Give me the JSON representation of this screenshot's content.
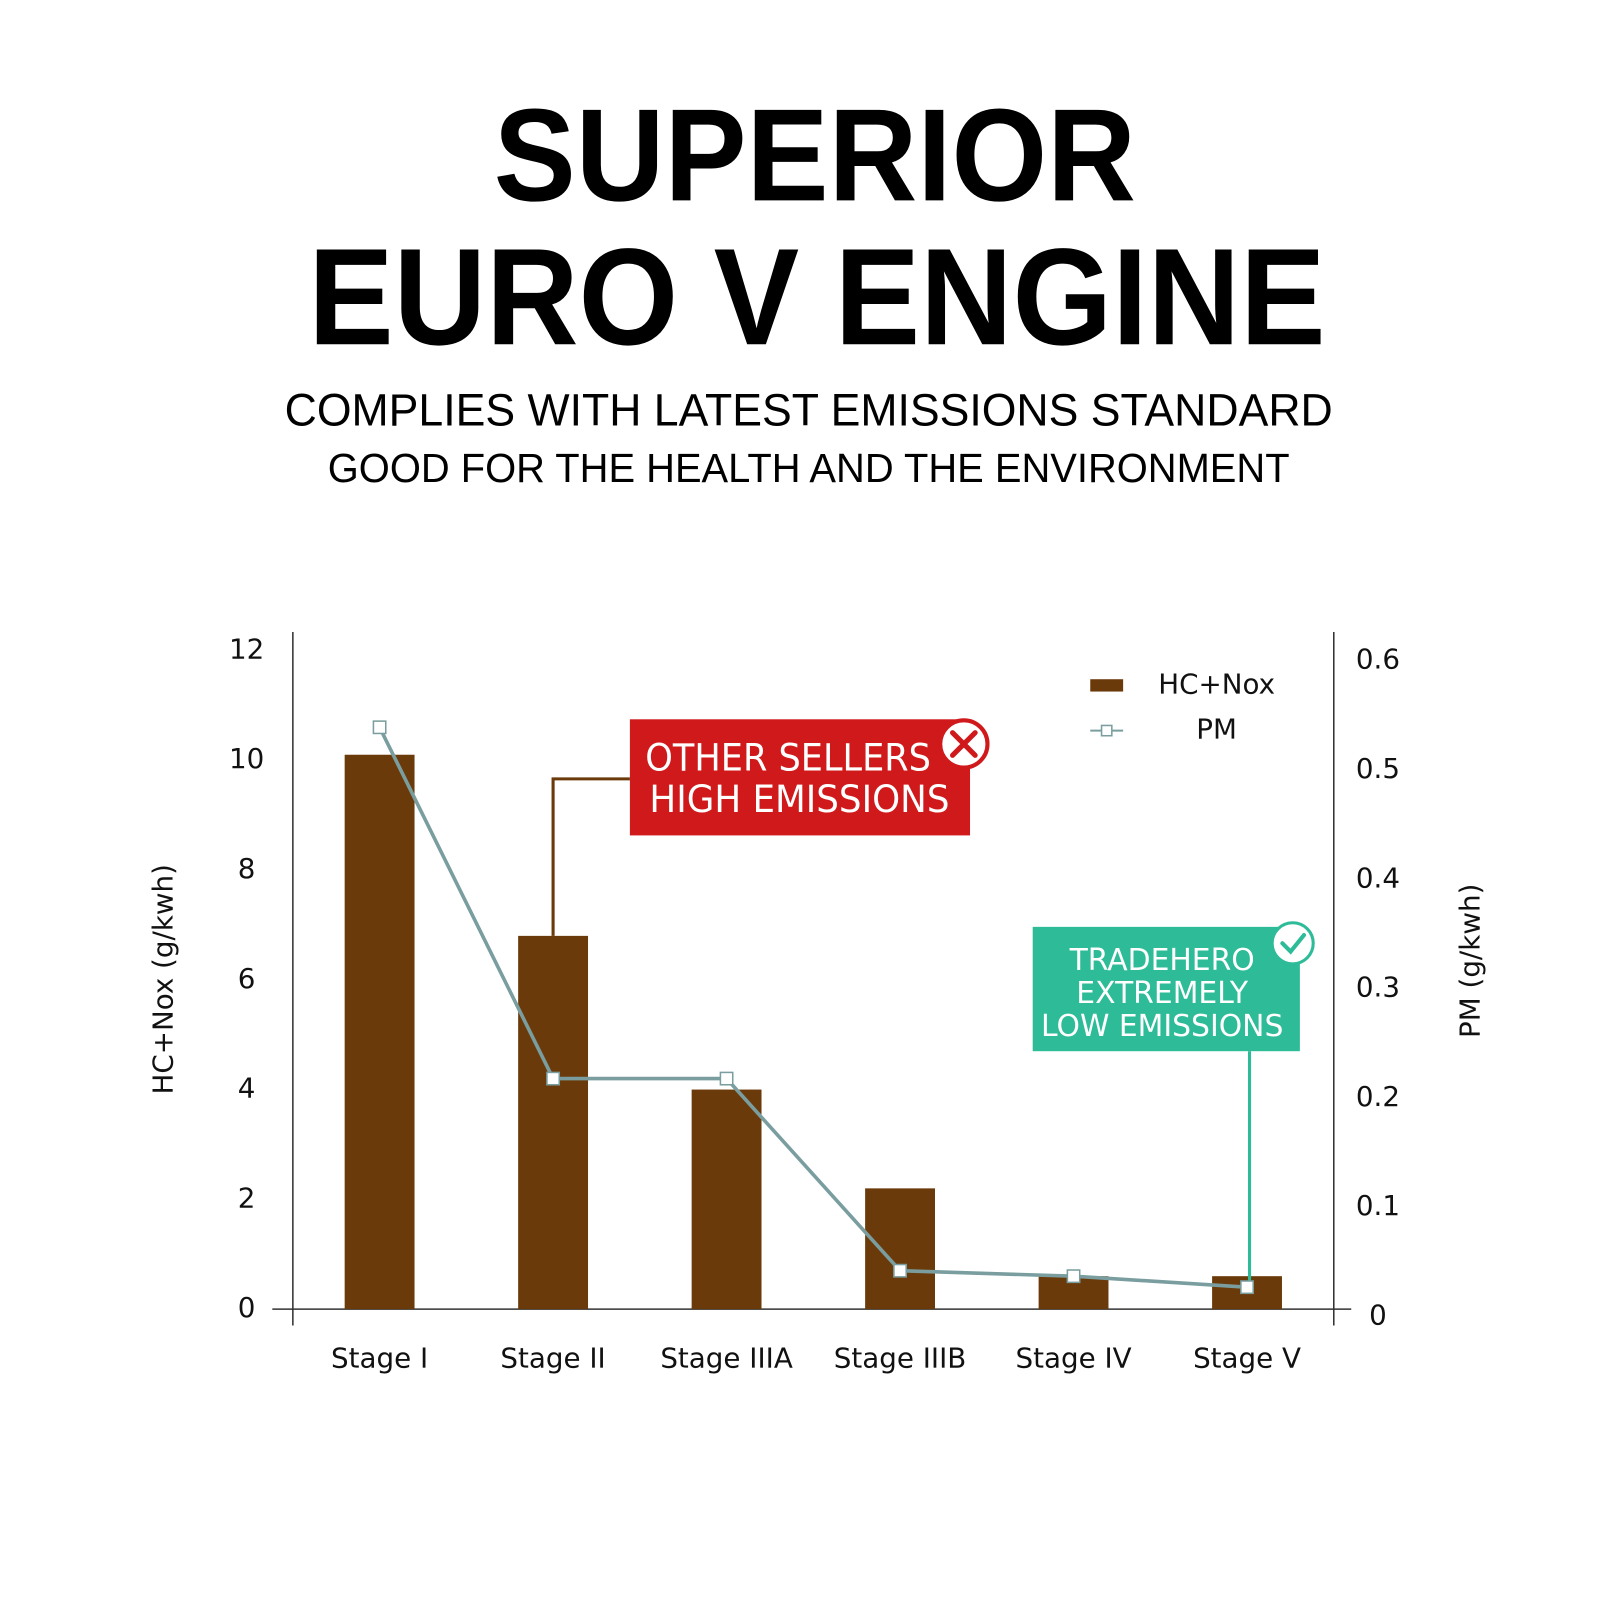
{
  "header": {
    "title_lines": [
      "SUPERIOR",
      "EURO V ENGINE"
    ],
    "subtitle_lines": [
      "COMPLIES WITH LATEST EMISSIONS STANDARD",
      "GOOD FOR THE HEALTH AND THE ENVIRONMENT"
    ]
  },
  "chart_data": {
    "type": "bar",
    "categories": [
      "Stage I",
      "Stage II",
      "Stage IIIA",
      "Stage IIIB",
      "Stage IV",
      "Stage V"
    ],
    "series": [
      {
        "name": "HC+Nox",
        "type": "bar",
        "color": "#6b3a0a",
        "values": [
          10.1,
          6.8,
          4.0,
          2.2,
          0.6,
          0.6
        ]
      },
      {
        "name": "PM",
        "type": "line",
        "axis": "y2",
        "color": "#7a9e9f",
        "values": [
          0.53,
          0.21,
          0.21,
          0.035,
          0.03,
          0.02
        ]
      }
    ],
    "y_label": "HC+Nox (g/kwh)",
    "y2_label": "PM (g/kwh)",
    "ylim": [
      0,
      12
    ],
    "yticks": [
      0,
      2,
      4,
      6,
      8,
      10,
      12
    ],
    "y2lim": [
      0,
      0.6
    ],
    "y2ticks": [
      0,
      0.1,
      0.2,
      0.3,
      0.4,
      0.5,
      0.6
    ],
    "grid": false,
    "legend": "top-right",
    "annotations": [
      {
        "lines": [
          "OTHER SELLERS",
          "HIGH EMISSIONS"
        ],
        "color": "#d0191b",
        "category": 1
      },
      {
        "lines": [
          "TRADEHERO",
          "EXTREMELY",
          "LOW EMISSIONS"
        ],
        "color": "#2dbb98",
        "category": 5
      }
    ]
  }
}
